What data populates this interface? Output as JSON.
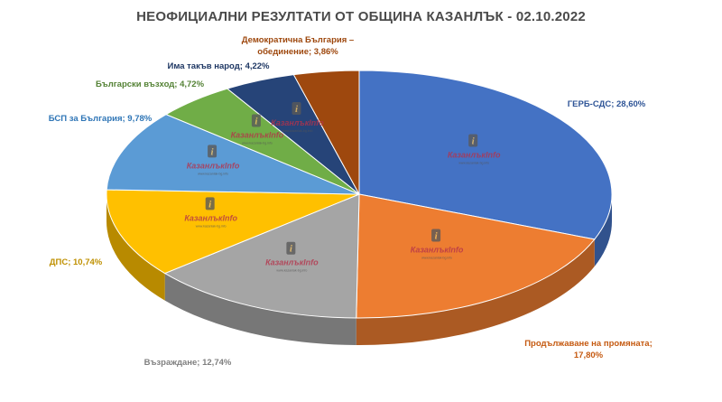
{
  "chart_data": {
    "type": "pie",
    "title": "НЕОФИЦИАЛНИ РЕЗУЛТАТИ ОТ ОБЩИНА КАЗАНЛЪК -  02.10.2022",
    "slices": [
      {
        "label": "ГЕРБ-СДС; 28,60%",
        "value": 28.6,
        "color": "#4472C4",
        "label_color": "#2F5597"
      },
      {
        "label": "Продължаване на промяната; 17,80%",
        "value": 17.8,
        "color": "#ED7D31",
        "label_color": "#C55A11"
      },
      {
        "label": "Възраждане; 12,74%",
        "value": 12.74,
        "color": "#A5A5A5",
        "label_color": "#7F7F7F"
      },
      {
        "label": "ДПС; 10,74%",
        "value": 10.74,
        "color": "#FFC000",
        "label_color": "#BF9000"
      },
      {
        "label": "БСП за България; 9,78%",
        "value": 9.78,
        "color": "#5B9BD5",
        "label_color": "#2E75B6"
      },
      {
        "label": "Български възход; 4,72%",
        "value": 4.72,
        "color": "#70AD47",
        "label_color": "#548235"
      },
      {
        "label": "Има такъв народ; 4,22%",
        "value": 4.22,
        "color": "#264478",
        "label_color": "#1F3864"
      },
      {
        "label": "Демократична България – обединение; 3,86%",
        "value": 3.86,
        "color": "#9E480E",
        "label_color": "#9E480E"
      }
    ]
  },
  "watermark": {
    "brand": "КазанлъкInfo",
    "sub": "www.kazanlak-bg.info"
  }
}
